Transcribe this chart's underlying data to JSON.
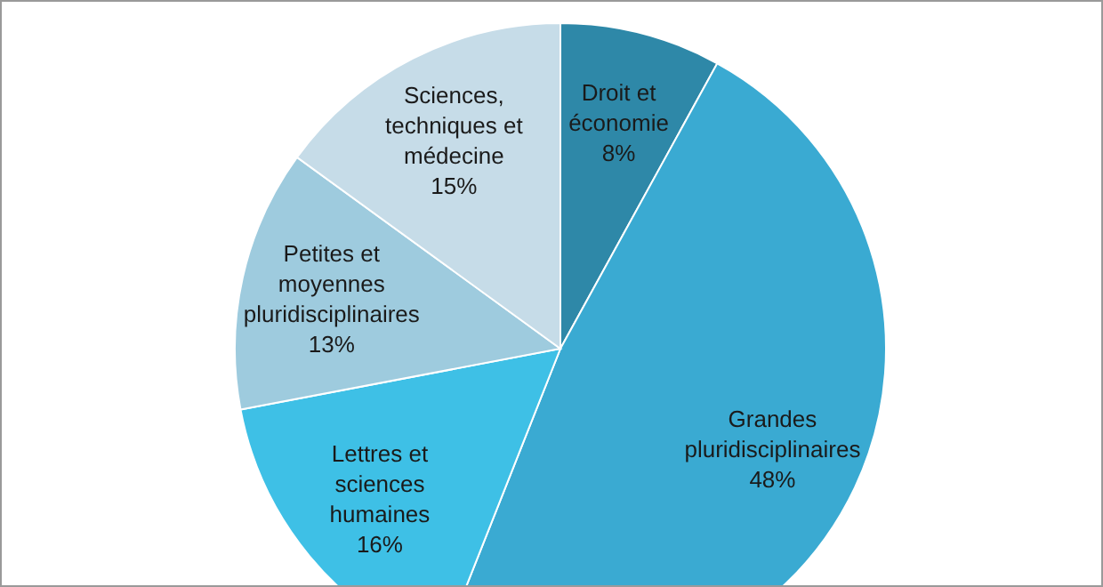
{
  "chart_data": {
    "type": "pie",
    "categories": [
      "Droit et économie",
      "Grandes pluridisciplinaires",
      "Lettres et sciences humaines",
      "Petites et moyennes pluridisciplinaires",
      "Sciences, techniques et médecine"
    ],
    "values": [
      8,
      48,
      16,
      13,
      15
    ],
    "value_labels": [
      "8%",
      "48%",
      "16%",
      "13%",
      "15%"
    ],
    "colors": [
      "#2e88a8",
      "#3aaad2",
      "#3ec0e6",
      "#9ecbde",
      "#c6dce8"
    ],
    "legend": false
  }
}
